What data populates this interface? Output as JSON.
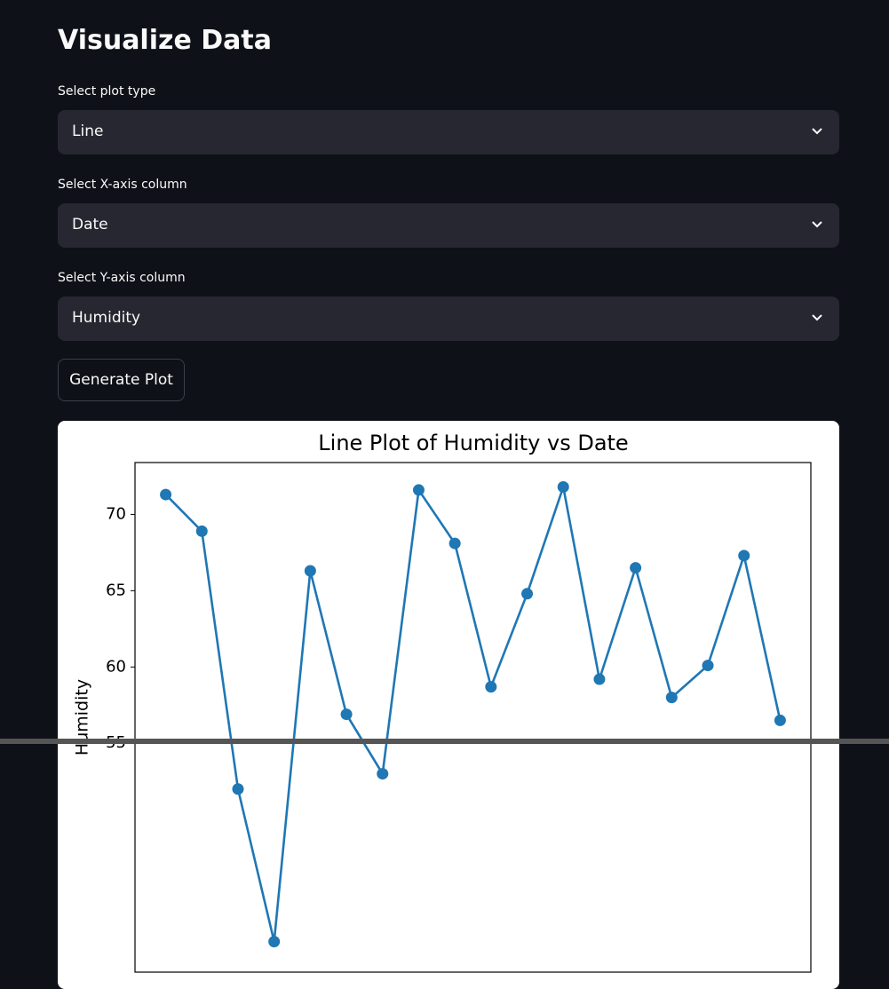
{
  "header": {
    "title": "Visualize Data"
  },
  "form": {
    "fields": [
      {
        "label": "Select plot type",
        "value": "Line"
      },
      {
        "label": "Select X-axis column",
        "value": "Date"
      },
      {
        "label": "Select Y-axis column",
        "value": "Humidity"
      }
    ],
    "button": "Generate Plot"
  },
  "chart_data": {
    "type": "line",
    "title": "Line Plot of Humidity vs Date",
    "y_label": "Humidity",
    "categories": [
      null,
      null,
      null,
      null,
      null,
      null,
      null,
      null,
      null,
      null,
      null,
      null,
      null,
      null,
      null,
      null,
      null,
      null
    ],
    "values": [
      71.3,
      68.9,
      52,
      42,
      66.3,
      56.9,
      53,
      71.6,
      68.1,
      58.7,
      64.8,
      71.8,
      59.2,
      66.5,
      58.0,
      60.1,
      67.3,
      56.5
    ],
    "color": "#1f77b4",
    "ylim": [
      40,
      73.4
    ],
    "yticks": [
      55,
      60,
      65,
      70
    ]
  }
}
